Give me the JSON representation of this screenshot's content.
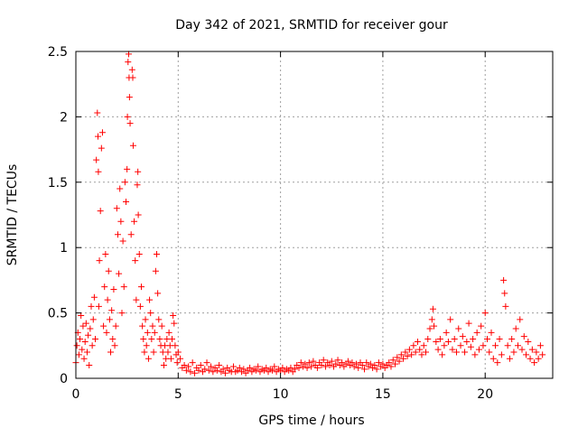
{
  "chart_data": {
    "type": "scatter",
    "title": "Day 342 of 2021, SRMTID for receiver gour",
    "xlabel": "GPS time / hours",
    "ylabel": "SRMTID / TECUs",
    "xlim": [
      0,
      23.3
    ],
    "ylim": [
      0,
      2.5
    ],
    "xticks": [
      0,
      5,
      10,
      15,
      20
    ],
    "xtick_labels": [
      "0",
      "5",
      "10",
      "15",
      "20"
    ],
    "yticks": [
      0,
      0.5,
      1,
      1.5,
      2,
      2.5
    ],
    "ytick_labels": [
      "0",
      "0.5",
      "1",
      "1.5",
      "2",
      "2.5"
    ],
    "grid": true,
    "marker": "plus",
    "series": [
      {
        "name": "SRMTID",
        "color": "#ff0000",
        "points": [
          [
            0.0,
            0.12
          ],
          [
            0.05,
            0.25
          ],
          [
            0.1,
            0.35
          ],
          [
            0.15,
            0.18
          ],
          [
            0.2,
            0.3
          ],
          [
            0.25,
            0.48
          ],
          [
            0.3,
            0.22
          ],
          [
            0.35,
            0.4
          ],
          [
            0.4,
            0.15
          ],
          [
            0.45,
            0.28
          ],
          [
            0.5,
            0.42
          ],
          [
            0.55,
            0.2
          ],
          [
            0.6,
            0.33
          ],
          [
            0.65,
            0.1
          ],
          [
            0.7,
            0.38
          ],
          [
            0.75,
            0.55
          ],
          [
            0.8,
            0.25
          ],
          [
            0.85,
            0.45
          ],
          [
            0.9,
            0.62
          ],
          [
            0.95,
            0.3
          ],
          [
            1.0,
            1.67
          ],
          [
            1.05,
            2.03
          ],
          [
            1.08,
            1.85
          ],
          [
            1.1,
            1.58
          ],
          [
            1.12,
            0.55
          ],
          [
            1.15,
            0.9
          ],
          [
            1.2,
            1.28
          ],
          [
            1.25,
            1.76
          ],
          [
            1.3,
            1.88
          ],
          [
            1.35,
            0.4
          ],
          [
            1.4,
            0.7
          ],
          [
            1.45,
            0.95
          ],
          [
            1.5,
            0.35
          ],
          [
            1.55,
            0.6
          ],
          [
            1.6,
            0.82
          ],
          [
            1.65,
            0.45
          ],
          [
            1.7,
            0.2
          ],
          [
            1.75,
            0.52
          ],
          [
            1.8,
            0.3
          ],
          [
            1.85,
            0.68
          ],
          [
            1.9,
            0.25
          ],
          [
            1.95,
            0.4
          ],
          [
            2.0,
            1.3
          ],
          [
            2.05,
            1.1
          ],
          [
            2.1,
            0.8
          ],
          [
            2.15,
            1.45
          ],
          [
            2.2,
            1.2
          ],
          [
            2.25,
            0.5
          ],
          [
            2.3,
            1.05
          ],
          [
            2.35,
            0.7
          ],
          [
            2.4,
            1.5
          ],
          [
            2.45,
            1.35
          ],
          [
            2.5,
            1.6
          ],
          [
            2.52,
            2.0
          ],
          [
            2.55,
            2.42
          ],
          [
            2.58,
            2.48
          ],
          [
            2.6,
            2.3
          ],
          [
            2.62,
            2.15
          ],
          [
            2.65,
            1.95
          ],
          [
            2.7,
            1.1
          ],
          [
            2.75,
            2.36
          ],
          [
            2.78,
            2.3
          ],
          [
            2.8,
            1.78
          ],
          [
            2.85,
            1.2
          ],
          [
            2.9,
            0.9
          ],
          [
            2.95,
            0.6
          ],
          [
            3.0,
            1.48
          ],
          [
            3.03,
            1.58
          ],
          [
            3.05,
            1.25
          ],
          [
            3.1,
            0.95
          ],
          [
            3.15,
            0.55
          ],
          [
            3.2,
            0.7
          ],
          [
            3.25,
            0.4
          ],
          [
            3.3,
            0.3
          ],
          [
            3.35,
            0.2
          ],
          [
            3.4,
            0.45
          ],
          [
            3.45,
            0.25
          ],
          [
            3.5,
            0.35
          ],
          [
            3.55,
            0.15
          ],
          [
            3.6,
            0.6
          ],
          [
            3.65,
            0.5
          ],
          [
            3.7,
            0.3
          ],
          [
            3.75,
            0.4
          ],
          [
            3.8,
            0.2
          ],
          [
            3.85,
            0.35
          ],
          [
            3.9,
            0.82
          ],
          [
            3.95,
            0.95
          ],
          [
            4.0,
            0.65
          ],
          [
            4.05,
            0.45
          ],
          [
            4.1,
            0.3
          ],
          [
            4.15,
            0.25
          ],
          [
            4.2,
            0.4
          ],
          [
            4.25,
            0.2
          ],
          [
            4.3,
            0.1
          ],
          [
            4.35,
            0.25
          ],
          [
            4.4,
            0.15
          ],
          [
            4.45,
            0.3
          ],
          [
            4.5,
            0.2
          ],
          [
            4.55,
            0.35
          ],
          [
            4.6,
            0.25
          ],
          [
            4.65,
            0.15
          ],
          [
            4.7,
            0.3
          ],
          [
            4.75,
            0.48
          ],
          [
            4.8,
            0.42
          ],
          [
            4.85,
            0.25
          ],
          [
            4.9,
            0.18
          ],
          [
            4.95,
            0.12
          ],
          [
            5.0,
            0.2
          ],
          [
            5.1,
            0.15
          ],
          [
            5.2,
            0.08
          ],
          [
            5.3,
            0.1
          ],
          [
            5.4,
            0.06
          ],
          [
            5.5,
            0.09
          ],
          [
            5.6,
            0.05
          ],
          [
            5.7,
            0.12
          ],
          [
            5.8,
            0.04
          ],
          [
            5.9,
            0.08
          ],
          [
            6.0,
            0.06
          ],
          [
            6.1,
            0.1
          ],
          [
            6.2,
            0.05
          ],
          [
            6.3,
            0.07
          ],
          [
            6.4,
            0.12
          ],
          [
            6.5,
            0.06
          ],
          [
            6.6,
            0.09
          ],
          [
            6.7,
            0.05
          ],
          [
            6.8,
            0.08
          ],
          [
            6.9,
            0.06
          ],
          [
            7.0,
            0.1
          ],
          [
            7.1,
            0.05
          ],
          [
            7.2,
            0.07
          ],
          [
            7.3,
            0.04
          ],
          [
            7.4,
            0.08
          ],
          [
            7.5,
            0.06
          ],
          [
            7.6,
            0.05
          ],
          [
            7.7,
            0.09
          ],
          [
            7.8,
            0.05
          ],
          [
            7.9,
            0.06
          ],
          [
            8.0,
            0.08
          ],
          [
            8.1,
            0.05
          ],
          [
            8.2,
            0.07
          ],
          [
            8.3,
            0.04
          ],
          [
            8.4,
            0.06
          ],
          [
            8.5,
            0.08
          ],
          [
            8.6,
            0.05
          ],
          [
            8.7,
            0.07
          ],
          [
            8.8,
            0.06
          ],
          [
            8.9,
            0.09
          ],
          [
            9.0,
            0.05
          ],
          [
            9.1,
            0.07
          ],
          [
            9.2,
            0.06
          ],
          [
            9.3,
            0.08
          ],
          [
            9.4,
            0.05
          ],
          [
            9.5,
            0.07
          ],
          [
            9.6,
            0.06
          ],
          [
            9.7,
            0.09
          ],
          [
            9.8,
            0.05
          ],
          [
            9.9,
            0.07
          ],
          [
            10.0,
            0.06
          ],
          [
            10.1,
            0.08
          ],
          [
            10.2,
            0.05
          ],
          [
            10.3,
            0.07
          ],
          [
            10.4,
            0.06
          ],
          [
            10.5,
            0.08
          ],
          [
            10.6,
            0.05
          ],
          [
            10.7,
            0.07
          ],
          [
            10.8,
            0.1
          ],
          [
            10.9,
            0.08
          ],
          [
            11.0,
            0.12
          ],
          [
            11.1,
            0.09
          ],
          [
            11.2,
            0.11
          ],
          [
            11.3,
            0.08
          ],
          [
            11.4,
            0.12
          ],
          [
            11.5,
            0.09
          ],
          [
            11.6,
            0.13
          ],
          [
            11.7,
            0.1
          ],
          [
            11.8,
            0.08
          ],
          [
            11.9,
            0.12
          ],
          [
            12.0,
            0.1
          ],
          [
            12.1,
            0.14
          ],
          [
            12.2,
            0.09
          ],
          [
            12.3,
            0.12
          ],
          [
            12.4,
            0.1
          ],
          [
            12.5,
            0.13
          ],
          [
            12.6,
            0.09
          ],
          [
            12.7,
            0.11
          ],
          [
            12.8,
            0.14
          ],
          [
            12.9,
            0.1
          ],
          [
            13.0,
            0.12
          ],
          [
            13.1,
            0.09
          ],
          [
            13.2,
            0.11
          ],
          [
            13.3,
            0.13
          ],
          [
            13.4,
            0.1
          ],
          [
            13.5,
            0.12
          ],
          [
            13.6,
            0.09
          ],
          [
            13.7,
            0.11
          ],
          [
            13.8,
            0.08
          ],
          [
            13.9,
            0.12
          ],
          [
            14.0,
            0.1
          ],
          [
            14.1,
            0.07
          ],
          [
            14.2,
            0.12
          ],
          [
            14.3,
            0.09
          ],
          [
            14.4,
            0.11
          ],
          [
            14.5,
            0.08
          ],
          [
            14.6,
            0.1
          ],
          [
            14.7,
            0.07
          ],
          [
            14.8,
            0.12
          ],
          [
            14.9,
            0.09
          ],
          [
            15.0,
            0.11
          ],
          [
            15.1,
            0.08
          ],
          [
            15.2,
            0.1
          ],
          [
            15.3,
            0.12
          ],
          [
            15.4,
            0.09
          ],
          [
            15.5,
            0.14
          ],
          [
            15.6,
            0.11
          ],
          [
            15.7,
            0.16
          ],
          [
            15.8,
            0.13
          ],
          [
            15.9,
            0.18
          ],
          [
            16.0,
            0.15
          ],
          [
            16.1,
            0.2
          ],
          [
            16.2,
            0.17
          ],
          [
            16.3,
            0.22
          ],
          [
            16.4,
            0.18
          ],
          [
            16.5,
            0.25
          ],
          [
            16.6,
            0.2
          ],
          [
            16.7,
            0.28
          ],
          [
            16.8,
            0.22
          ],
          [
            16.9,
            0.18
          ],
          [
            17.0,
            0.25
          ],
          [
            17.1,
            0.2
          ],
          [
            17.2,
            0.3
          ],
          [
            17.3,
            0.38
          ],
          [
            17.4,
            0.45
          ],
          [
            17.45,
            0.53
          ],
          [
            17.5,
            0.4
          ],
          [
            17.6,
            0.28
          ],
          [
            17.7,
            0.22
          ],
          [
            17.8,
            0.3
          ],
          [
            17.9,
            0.18
          ],
          [
            18.0,
            0.25
          ],
          [
            18.1,
            0.35
          ],
          [
            18.2,
            0.28
          ],
          [
            18.3,
            0.45
          ],
          [
            18.4,
            0.22
          ],
          [
            18.5,
            0.3
          ],
          [
            18.6,
            0.2
          ],
          [
            18.7,
            0.38
          ],
          [
            18.8,
            0.25
          ],
          [
            18.9,
            0.32
          ],
          [
            19.0,
            0.2
          ],
          [
            19.1,
            0.28
          ],
          [
            19.2,
            0.42
          ],
          [
            19.3,
            0.24
          ],
          [
            19.4,
            0.3
          ],
          [
            19.5,
            0.18
          ],
          [
            19.6,
            0.35
          ],
          [
            19.7,
            0.22
          ],
          [
            19.8,
            0.4
          ],
          [
            19.9,
            0.25
          ],
          [
            20.0,
            0.5
          ],
          [
            20.1,
            0.3
          ],
          [
            20.2,
            0.2
          ],
          [
            20.3,
            0.35
          ],
          [
            20.4,
            0.15
          ],
          [
            20.5,
            0.25
          ],
          [
            20.6,
            0.12
          ],
          [
            20.7,
            0.3
          ],
          [
            20.8,
            0.18
          ],
          [
            20.9,
            0.75
          ],
          [
            20.95,
            0.65
          ],
          [
            21.0,
            0.55
          ],
          [
            21.1,
            0.25
          ],
          [
            21.2,
            0.15
          ],
          [
            21.3,
            0.3
          ],
          [
            21.4,
            0.2
          ],
          [
            21.5,
            0.38
          ],
          [
            21.6,
            0.25
          ],
          [
            21.7,
            0.45
          ],
          [
            21.8,
            0.22
          ],
          [
            21.9,
            0.32
          ],
          [
            22.0,
            0.18
          ],
          [
            22.1,
            0.28
          ],
          [
            22.2,
            0.15
          ],
          [
            22.3,
            0.22
          ],
          [
            22.4,
            0.12
          ],
          [
            22.5,
            0.2
          ],
          [
            22.6,
            0.15
          ],
          [
            22.7,
            0.25
          ],
          [
            22.8,
            0.18
          ]
        ]
      }
    ]
  }
}
